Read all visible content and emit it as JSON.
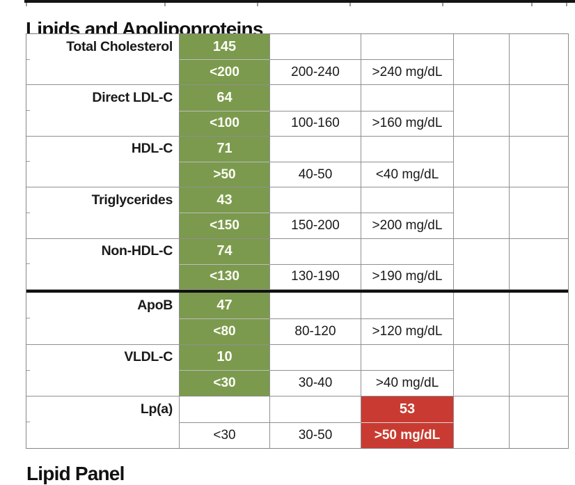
{
  "page": {
    "title": "Lipids and Apolipoproteins",
    "next_section_title": "Lipid Panel"
  },
  "colors": {
    "optimal_green": "#7b9a4e",
    "high_risk_red": "#c93b32",
    "border_gray": "#8f8f8f",
    "rule_black": "#141414"
  },
  "table": {
    "unit": "mg/dL",
    "columns": [
      "analyte",
      "result / optimal range",
      "borderline range",
      "high risk range",
      "extra-1",
      "extra-2"
    ],
    "analytes": [
      {
        "label": "Total Cholesterol",
        "value": "145",
        "status": "optimal",
        "optimal": "<200",
        "borderline": "200-240",
        "high": ">240 mg/dL",
        "section": 1
      },
      {
        "label": "Direct LDL-C",
        "value": "64",
        "status": "optimal",
        "optimal": "<100",
        "borderline": "100-160",
        "high": ">160 mg/dL",
        "section": 1
      },
      {
        "label": "HDL-C",
        "value": "71",
        "status": "optimal",
        "optimal": ">50",
        "borderline": "40-50",
        "high": "<40 mg/dL",
        "section": 1
      },
      {
        "label": "Triglycerides",
        "value": "43",
        "status": "optimal",
        "optimal": "<150",
        "borderline": "150-200",
        "high": ">200 mg/dL",
        "section": 1
      },
      {
        "label": "Non-HDL-C",
        "value": "74",
        "status": "optimal",
        "optimal": "<130",
        "borderline": "130-190",
        "high": ">190 mg/dL",
        "section": 1
      },
      {
        "label": "ApoB",
        "value": "47",
        "status": "optimal",
        "optimal": "<80",
        "borderline": "80-120",
        "high": ">120 mg/dL",
        "section": 2
      },
      {
        "label": "VLDL-C",
        "value": "10",
        "status": "optimal",
        "optimal": "<30",
        "borderline": "30-40",
        "high": ">40 mg/dL",
        "section": 2
      },
      {
        "label": "Lp(a)",
        "value": "53",
        "status": "high",
        "optimal": "<30",
        "borderline": "30-50",
        "high": ">50 mg/dL",
        "section": 2
      }
    ]
  }
}
